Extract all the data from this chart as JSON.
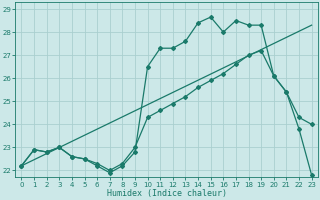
{
  "xlabel": "Humidex (Indice chaleur)",
  "background_color": "#cce8e8",
  "grid_color": "#aacfcf",
  "line_color": "#1a7a6a",
  "xlim": [
    -0.5,
    23.5
  ],
  "ylim": [
    21.7,
    29.3
  ],
  "xticks": [
    0,
    1,
    2,
    3,
    4,
    5,
    6,
    7,
    8,
    9,
    10,
    11,
    12,
    13,
    14,
    15,
    16,
    17,
    18,
    19,
    20,
    21,
    22,
    23
  ],
  "yticks": [
    22,
    23,
    24,
    25,
    26,
    27,
    28,
    29
  ],
  "line1_x": [
    0,
    1,
    2,
    3,
    4,
    5,
    6,
    7,
    8,
    9,
    10,
    11,
    12,
    13,
    14,
    15,
    16,
    17,
    18,
    19,
    20,
    21,
    22,
    23
  ],
  "line1_y": [
    22.2,
    22.9,
    22.8,
    23.0,
    22.6,
    22.5,
    22.2,
    21.9,
    22.2,
    22.8,
    26.5,
    27.3,
    27.3,
    27.6,
    28.4,
    28.65,
    28.0,
    28.5,
    28.3,
    28.3,
    26.1,
    25.4,
    23.8,
    21.8
  ],
  "line2_x": [
    0,
    1,
    2,
    3,
    4,
    5,
    6,
    7,
    8,
    9,
    10,
    11,
    12,
    13,
    14,
    15,
    16,
    17,
    18,
    19,
    20,
    21,
    22,
    23
  ],
  "line2_y": [
    22.2,
    22.9,
    22.8,
    23.0,
    22.6,
    22.5,
    22.3,
    22.0,
    22.3,
    23.0,
    24.3,
    24.6,
    24.9,
    25.2,
    25.6,
    25.9,
    26.2,
    26.6,
    27.0,
    27.2,
    26.1,
    25.4,
    24.3,
    24.0
  ],
  "line3_x": [
    0,
    23
  ],
  "line3_y": [
    22.2,
    28.3
  ]
}
